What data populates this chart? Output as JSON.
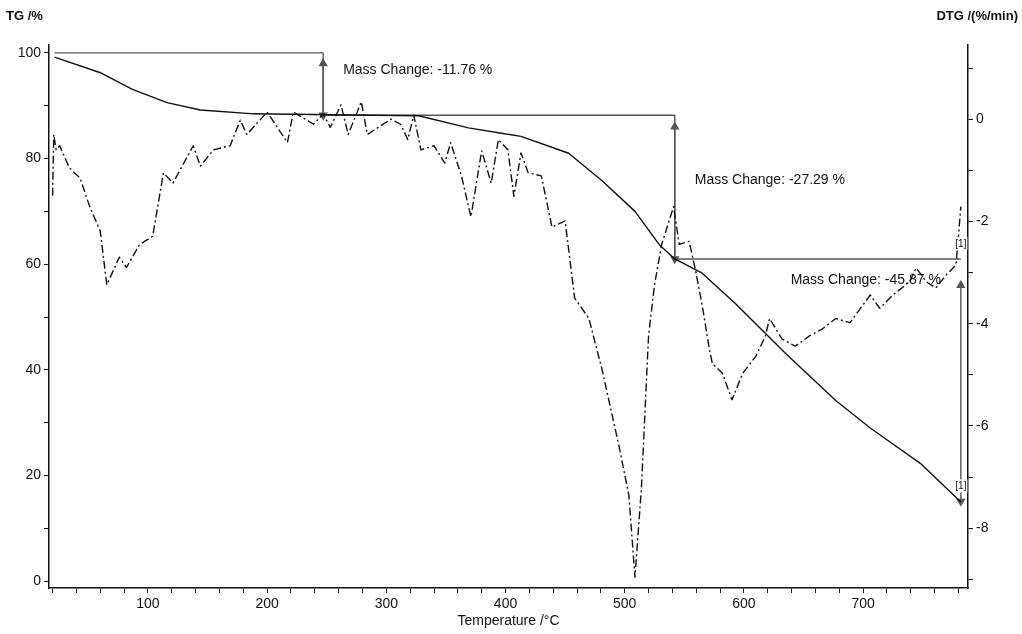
{
  "chart_data": {
    "type": "line",
    "xlabel": "Temperature /°C",
    "ylabel": "TG /%",
    "y2label": "DTG /(%/min)",
    "xlim": [
      17,
      788
    ],
    "xticks": [
      {
        "value": 20,
        "label": null
      },
      {
        "value": 40,
        "label": null
      },
      {
        "value": 60,
        "label": null
      },
      {
        "value": 80,
        "label": null
      },
      100,
      {
        "value": 120,
        "label": null
      },
      {
        "value": 140,
        "label": null
      },
      {
        "value": 160,
        "label": null
      },
      {
        "value": 180,
        "label": null
      },
      200,
      {
        "value": 220,
        "label": null
      },
      {
        "value": 240,
        "label": null
      },
      {
        "value": 260,
        "label": null
      },
      {
        "value": 280,
        "label": null
      },
      300,
      {
        "value": 320,
        "label": null
      },
      {
        "value": 340,
        "label": null
      },
      {
        "value": 360,
        "label": null
      },
      {
        "value": 380,
        "label": null
      },
      400,
      {
        "value": 420,
        "label": null
      },
      {
        "value": 440,
        "label": null
      },
      {
        "value": 460,
        "label": null
      },
      {
        "value": 480,
        "label": null
      },
      500,
      {
        "value": 520,
        "label": null
      },
      {
        "value": 540,
        "label": null
      },
      {
        "value": 560,
        "label": null
      },
      {
        "value": 580,
        "label": null
      },
      600,
      {
        "value": 620,
        "label": null
      },
      {
        "value": 640,
        "label": null
      },
      {
        "value": 660,
        "label": null
      },
      {
        "value": 680,
        "label": null
      },
      700,
      {
        "value": 720,
        "label": null
      },
      {
        "value": 740,
        "label": null
      },
      {
        "value": 760,
        "label": null
      },
      {
        "value": 780,
        "label": null
      }
    ],
    "ylim": [
      -1.3,
      101.5
    ],
    "yticks": [
      0,
      {
        "value": 10,
        "label": null
      },
      20,
      {
        "value": 30,
        "label": null
      },
      40,
      {
        "value": 50,
        "label": null
      },
      60,
      {
        "value": 70,
        "label": null
      },
      80,
      {
        "value": 90,
        "label": null
      },
      100
    ],
    "y2lim": [
      -9.17,
      1.45
    ],
    "y2ticks": [
      {
        "value": -9,
        "label": null
      },
      -8,
      {
        "value": -7,
        "label": null
      },
      -6,
      {
        "value": -5,
        "label": null
      },
      -4,
      {
        "value": -3,
        "label": null
      },
      -2,
      {
        "value": -1,
        "label": null
      },
      0,
      {
        "value": 1,
        "label": null
      }
    ],
    "annotations": [
      {
        "text": "Mass Change: -11.76 %",
        "x": 247,
        "y": 96.7
      },
      {
        "text": "Mass Change: -27.29 %",
        "x": 542,
        "y": 76
      },
      {
        "text": "Mass Change: -45.87 %",
        "x": 782,
        "y": 57
      },
      {
        "text": "[1]",
        "x": 782,
        "y": 61
      },
      {
        "text": "[1]",
        "x": 782,
        "y": 15.1
      }
    ],
    "series": [
      {
        "color": "#111111",
        "line_style": "solid",
        "x": [
          21.6,
          59.6,
          87,
          116,
          144,
          186,
          256,
          327,
          369,
          396.5,
          413,
          453,
          481,
          508.6,
          529,
          542,
          565,
          593,
          635,
          677,
          706,
          748,
          782
        ],
        "values": [
          99.2,
          96.3,
          93.1,
          90.6,
          89.2,
          88.5,
          88.3,
          88.1,
          85.8,
          84.8,
          84.2,
          81,
          75.8,
          70,
          63.7,
          61,
          58.3,
          52.5,
          43.1,
          34.2,
          29,
          22.3,
          15
        ]
      },
      {
        "color": "#111111",
        "line_style": "dashed",
        "axis": "y2",
        "x": [
          20,
          21,
          23,
          26,
          34,
          43,
          51,
          60,
          65.5,
          76,
          82,
          93,
          104,
          113,
          121,
          138,
          144,
          155,
          169,
          177.5,
          183,
          200,
          217,
          222,
          239,
          247,
          253,
          262,
          268,
          279,
          284,
          304,
          312,
          318,
          323,
          329,
          340,
          349,
          354,
          363,
          371,
          380,
          388,
          394,
          402,
          407,
          413,
          419,
          430,
          439,
          450,
          458,
          470,
          481,
          495,
          503.5,
          508.6,
          514,
          520,
          525,
          531,
          541,
          545.7,
          554,
          559,
          565,
          571,
          573.5,
          582,
          590,
          599,
          610,
          618,
          621.5,
          632,
          643,
          655,
          666,
          677,
          689,
          706,
          714,
          725,
          739,
          744.5,
          753,
          761,
          770,
          778,
          782
        ],
        "values": [
          -1.5,
          -0.3,
          -0.6,
          -0.52,
          -0.95,
          -1.15,
          -1.7,
          -2.19,
          -3.24,
          -2.7,
          -2.9,
          -2.45,
          -2.29,
          -1.05,
          -1.25,
          -0.52,
          -0.92,
          -0.6,
          -0.52,
          -0.02,
          -0.3,
          0.14,
          -0.46,
          0.14,
          -0.1,
          0.1,
          -0.16,
          0.28,
          -0.3,
          0.34,
          -0.3,
          0,
          -0.1,
          -0.4,
          0.08,
          -0.6,
          -0.52,
          -0.86,
          -0.46,
          -1.11,
          -1.91,
          -0.62,
          -1.25,
          -0.4,
          -0.6,
          -1.51,
          -0.66,
          -1.05,
          -1.11,
          -2.11,
          -1.99,
          -3.5,
          -3.9,
          -4.9,
          -6.37,
          -7.36,
          -8.96,
          -7.22,
          -4.24,
          -3.24,
          -2.45,
          -1.71,
          -2.45,
          -2.39,
          -2.91,
          -3.64,
          -4.5,
          -4.78,
          -4.97,
          -5.49,
          -4.97,
          -4.64,
          -4.24,
          -3.9,
          -4.3,
          -4.44,
          -4.24,
          -4.1,
          -3.9,
          -3.98,
          -3.44,
          -3.7,
          -3.44,
          -3.18,
          -2.91,
          -3.18,
          -3.3,
          -3.04,
          -2.85,
          -1.71
        ]
      },
      {
        "color": "#555555",
        "line_style": "solid",
        "x": [
          21.6,
          247,
          247,
          542,
          542,
          782
        ],
        "values": [
          100,
          100,
          88.2,
          88.2,
          61,
          61
        ]
      },
      {
        "color": "#555555",
        "line_style": "solid",
        "marker": "triangle",
        "x": [
          247,
          247
        ],
        "values": [
          98,
          88.2
        ]
      },
      {
        "color": "#555555",
        "line_style": "solid",
        "marker": "triangle",
        "x": [
          542,
          542
        ],
        "values": [
          86,
          61
        ]
      },
      {
        "color": "#555555",
        "line_style": "solid",
        "marker": "triangle",
        "x": [
          782,
          782
        ],
        "values": [
          56,
          15.1
        ]
      }
    ]
  }
}
